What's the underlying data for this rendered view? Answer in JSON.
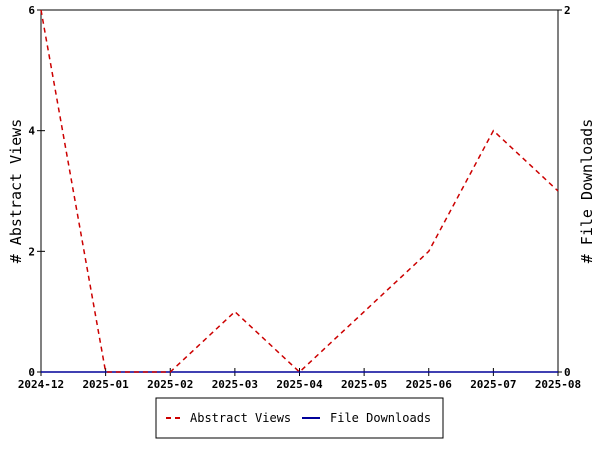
{
  "chart_data": {
    "type": "line",
    "x": [
      "2024-12",
      "2025-01",
      "2025-02",
      "2025-03",
      "2025-04",
      "2025-05",
      "2025-06",
      "2025-07",
      "2025-08"
    ],
    "series": [
      {
        "name": "Abstract Views",
        "axis": "left",
        "color": "#cc0000",
        "dash": "dashed",
        "values": [
          6,
          0,
          0,
          1,
          0,
          1,
          2,
          4,
          3
        ]
      },
      {
        "name": "File Downloads",
        "axis": "right",
        "color": "#000099",
        "dash": "solid",
        "values": [
          0,
          0,
          0,
          0,
          0,
          0,
          0,
          0,
          0
        ]
      }
    ],
    "ylabel_left": "# Abstract Views",
    "ylabel_right": "# File Downloads",
    "ylim_left": [
      0,
      6
    ],
    "yticks_left": [
      0,
      2,
      4,
      6
    ],
    "ylim_right": [
      0,
      2
    ],
    "yticks_right": [
      0,
      2
    ],
    "grid": false,
    "legend_position": "bottom-center"
  }
}
